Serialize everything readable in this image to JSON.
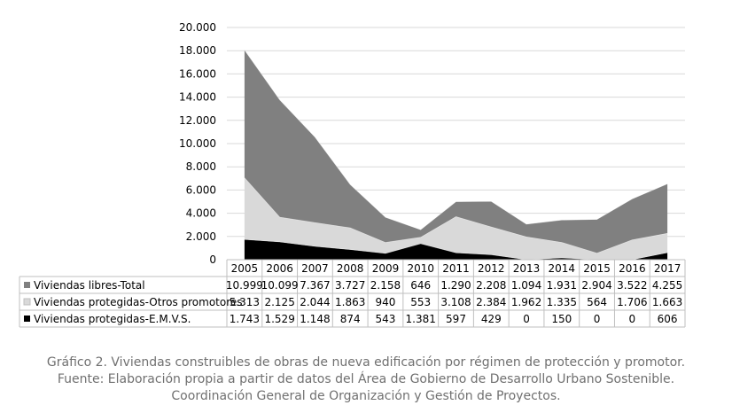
{
  "chart_data": {
    "type": "area",
    "stacked": true,
    "categories": [
      "2005",
      "2006",
      "2007",
      "2008",
      "2009",
      "2010",
      "2011",
      "2012",
      "2013",
      "2014",
      "2015",
      "2016",
      "2017"
    ],
    "ylim": [
      0,
      20000
    ],
    "yticks": [
      0,
      2000,
      4000,
      6000,
      8000,
      10000,
      12000,
      14000,
      16000,
      18000,
      20000
    ],
    "ytick_labels": [
      "0",
      "2.000",
      "4.000",
      "6.000",
      "8.000",
      "10.000",
      "12.000",
      "14.000",
      "16.000",
      "18.000",
      "20.000"
    ],
    "grid": "horizontal",
    "series": [
      {
        "name": "Viviendas protegidas-E.M.V.S.",
        "color": "#000000",
        "values": [
          1743,
          1529,
          1148,
          874,
          543,
          1381,
          597,
          429,
          0,
          150,
          0,
          0,
          606
        ],
        "labels": [
          "1.743",
          "1.529",
          "1.148",
          "874",
          "543",
          "1.381",
          "597",
          "429",
          "0",
          "150",
          "0",
          "0",
          "606"
        ]
      },
      {
        "name": "Viviendas protegidas-Otros promotores",
        "color": "#d9d9d9",
        "values": [
          5313,
          2125,
          2044,
          1863,
          940,
          553,
          3108,
          2384,
          1962,
          1335,
          564,
          1706,
          1663
        ],
        "labels": [
          "5.313",
          "2.125",
          "2.044",
          "1.863",
          "940",
          "553",
          "3.108",
          "2.384",
          "1.962",
          "1.335",
          "564",
          "1.706",
          "1.663"
        ]
      },
      {
        "name": "Viviendas libres-Total",
        "color": "#808080",
        "values": [
          10999,
          10099,
          7367,
          3727,
          2158,
          646,
          1290,
          2208,
          1094,
          1931,
          2904,
          3522,
          4255
        ],
        "labels": [
          "10.999",
          "10.099",
          "7.367",
          "3.727",
          "2.158",
          "646",
          "1.290",
          "2.208",
          "1.094",
          "1.931",
          "2.904",
          "3.522",
          "4.255"
        ]
      }
    ],
    "table_row_order": [
      2,
      1,
      0
    ]
  },
  "caption": {
    "line1": "Gráfico 2. Viviendas construibles de obras de nueva edificación por régimen de protección y promotor.",
    "line2": "Fuente: Elaboración propia a partir de datos del Área de Gobierno de Desarrollo Urbano Sostenible.",
    "line3": "Coordinación General de Organización y Gestión de Proyectos."
  }
}
